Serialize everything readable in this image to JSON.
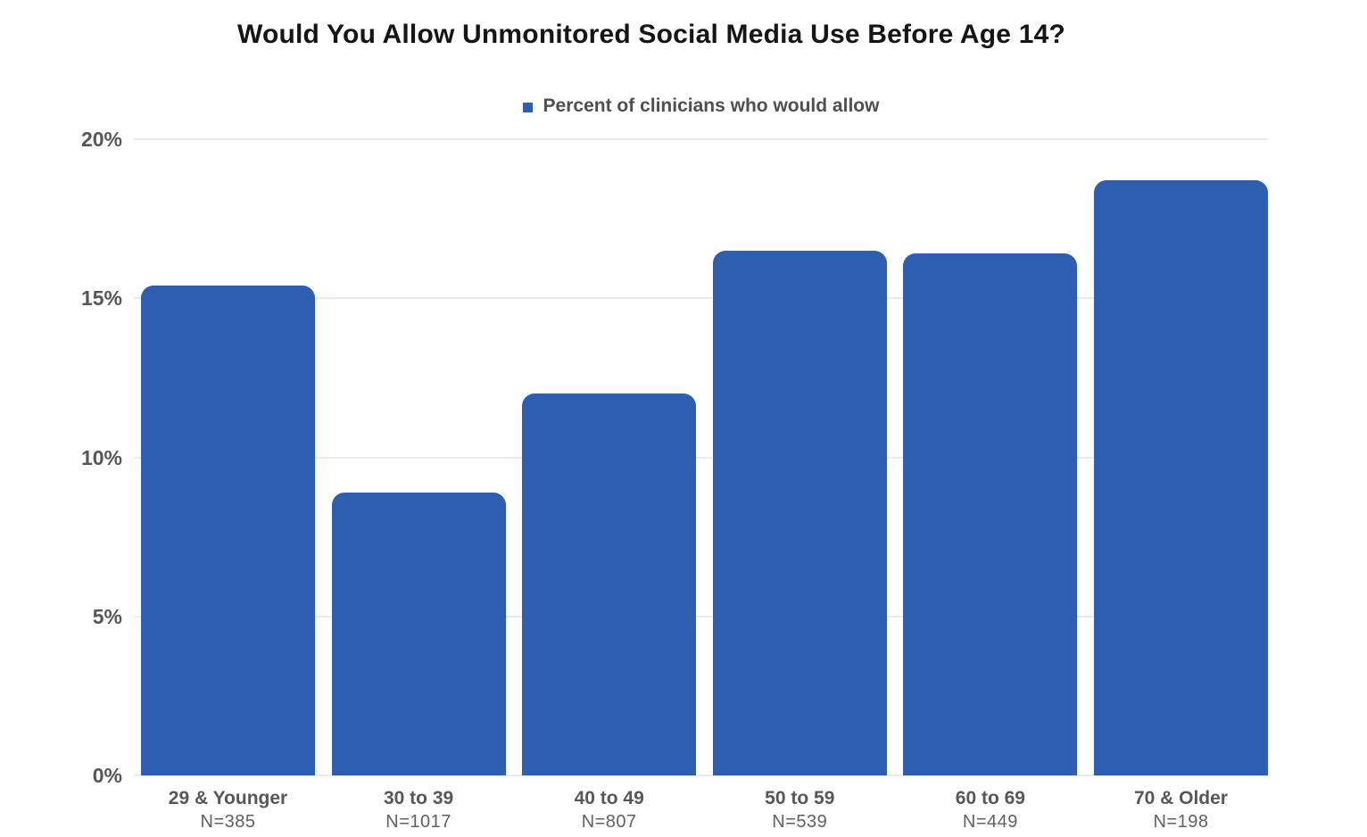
{
  "chart_data": {
    "type": "bar",
    "title": "Would You Allow Unmonitored Social Media Use Before Age 14?",
    "legend_entries": [
      "Percent of clinicians who would allow"
    ],
    "legend_position": "top-center",
    "categories": [
      "29 & Younger",
      "30 to 39",
      "40 to 49",
      "50 to 59",
      "60 to 69",
      "70 & Older"
    ],
    "sample_sizes": [
      "N=385",
      "N=1017",
      "N=807",
      "N=539",
      "N=449",
      "N=198"
    ],
    "series": [
      {
        "name": "Percent of clinicians who would allow",
        "values": [
          15.4,
          8.9,
          12.0,
          16.5,
          16.4,
          18.7
        ]
      }
    ],
    "unit": "%",
    "xlabel": "",
    "ylabel": "",
    "ylim": [
      0,
      20
    ],
    "yticks": [
      0,
      5,
      10,
      15,
      20
    ],
    "ytick_labels": [
      "0%",
      "5%",
      "10%",
      "15%",
      "20%"
    ],
    "grid": true,
    "colors": {
      "bar": "#2D5EB0",
      "gridline": "#EBEBEB",
      "title_text": "#151515",
      "axis_text": "#565759",
      "legend_text": "#4F4F4F",
      "background": "#FFFFFF"
    }
  }
}
